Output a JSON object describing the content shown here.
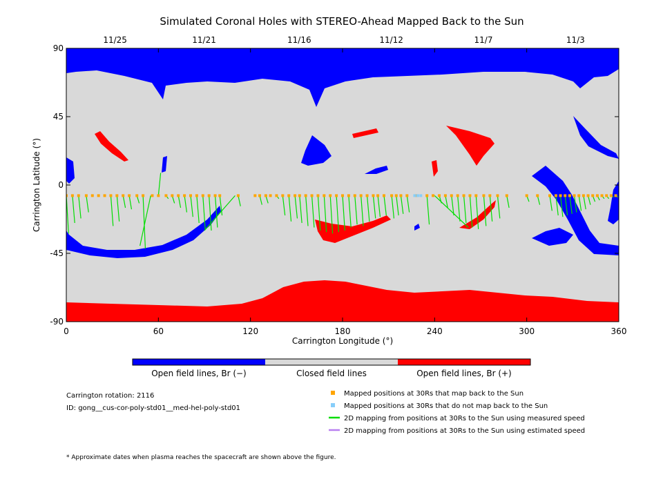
{
  "chart_data": {
    "type": "heatmap",
    "title": "Simulated Coronal Holes with STEREO-Ahead Mapped Back to the Sun",
    "xlabel": "Carrington Longitude (°)",
    "ylabel": "Carrington Latitude (°)",
    "xlim": [
      0,
      360
    ],
    "ylim": [
      -90,
      90
    ],
    "x_ticks": [
      "0",
      "60",
      "120",
      "180",
      "240",
      "300",
      "360"
    ],
    "y_ticks": [
      "90",
      "45",
      "0",
      "-45",
      "-90"
    ],
    "date_ticks": [
      {
        "label": "11/25",
        "lon": 30
      },
      {
        "label": "11/21",
        "lon": 88
      },
      {
        "label": "11/16",
        "lon": 150
      },
      {
        "label": "11/12",
        "lon": 210
      },
      {
        "label": "11/7",
        "lon": 270
      },
      {
        "label": "11/3",
        "lon": 330
      }
    ],
    "colorbar": [
      {
        "label": "Open field lines, Br (−)",
        "color": "#0000ff"
      },
      {
        "label": "Closed field lines",
        "color": "#d9d9d9"
      },
      {
        "label": "Open field lines, Br (+)",
        "color": "#ff0000"
      }
    ],
    "mapped_latitude": -7,
    "mapped_lons": [
      0,
      4,
      8,
      13,
      17,
      21,
      25,
      29,
      33,
      37,
      41,
      46,
      50,
      56,
      60,
      65,
      69,
      73,
      77,
      81,
      85,
      89,
      93,
      97,
      100,
      112,
      123,
      126,
      130,
      133,
      137,
      141,
      145,
      149,
      152,
      156,
      160,
      164,
      168,
      172,
      176,
      180,
      184,
      188,
      192,
      196,
      200,
      203,
      207,
      212,
      215,
      218,
      222,
      228,
      235,
      239,
      243,
      247,
      251,
      255,
      259,
      263,
      267,
      272,
      276,
      281,
      287,
      300,
      307,
      315,
      319,
      322,
      325,
      328,
      331,
      334,
      337,
      340,
      343,
      346,
      349,
      352,
      355,
      358
    ],
    "unmapped_lons": [
      227,
      229,
      231
    ],
    "mappings": [
      [
        0,
        -32
      ],
      [
        4,
        -25
      ],
      [
        8,
        -22
      ],
      [
        13,
        -18
      ],
      [
        29,
        -27
      ],
      [
        33,
        -24
      ],
      [
        37,
        -15
      ],
      [
        41,
        -16
      ],
      [
        46,
        -12
      ],
      [
        50,
        -42
      ],
      [
        60,
        8
      ],
      [
        65,
        -9
      ],
      [
        69,
        -12
      ],
      [
        73,
        -15
      ],
      [
        77,
        -18
      ],
      [
        81,
        -21
      ],
      [
        85,
        -25
      ],
      [
        89,
        -29
      ],
      [
        93,
        -30
      ],
      [
        97,
        -28
      ],
      [
        100,
        -20
      ],
      [
        112,
        -14
      ],
      [
        126,
        -13
      ],
      [
        130,
        -12
      ],
      [
        137,
        -9
      ],
      [
        141,
        -20
      ],
      [
        145,
        -24
      ],
      [
        149,
        -22
      ],
      [
        152,
        -25
      ],
      [
        156,
        -27
      ],
      [
        160,
        -28
      ],
      [
        164,
        -30
      ],
      [
        168,
        -31
      ],
      [
        172,
        -32
      ],
      [
        176,
        -31
      ],
      [
        180,
        -30
      ],
      [
        184,
        -28
      ],
      [
        188,
        -26
      ],
      [
        192,
        -27
      ],
      [
        196,
        -24
      ],
      [
        200,
        -22
      ],
      [
        203,
        -21
      ],
      [
        207,
        -20
      ],
      [
        212,
        -22
      ],
      [
        215,
        -20
      ],
      [
        218,
        -19
      ],
      [
        222,
        -18
      ],
      [
        235,
        -26
      ],
      [
        243,
        -12
      ],
      [
        247,
        -15
      ],
      [
        251,
        -20
      ],
      [
        255,
        -24
      ],
      [
        259,
        -25
      ],
      [
        263,
        -28
      ],
      [
        267,
        -29
      ],
      [
        272,
        -27
      ],
      [
        276,
        -24
      ],
      [
        281,
        -22
      ],
      [
        287,
        -15
      ],
      [
        300,
        -11
      ],
      [
        307,
        -13
      ],
      [
        315,
        -17
      ],
      [
        319,
        -20
      ],
      [
        322,
        -21
      ],
      [
        325,
        -20
      ],
      [
        328,
        -19
      ],
      [
        331,
        -18
      ],
      [
        334,
        -17
      ],
      [
        337,
        -16
      ],
      [
        340,
        -13
      ],
      [
        343,
        -11
      ],
      [
        346,
        -10
      ],
      [
        349,
        -9
      ],
      [
        352,
        -9
      ],
      [
        355,
        -8
      ],
      [
        358,
        -8
      ]
    ]
  },
  "info": {
    "rotation": "Carrington rotation: 2116",
    "id": "ID: gong__cus-cor-poly-std01__med-hel-poly-std01"
  },
  "legend": [
    {
      "label": "Mapped positions at 30Rs that map back to the Sun",
      "color": "#ffa500",
      "kind": "square"
    },
    {
      "label": "Mapped positions at 30Rs that do not map back to the Sun",
      "color": "#87cefa",
      "kind": "square"
    },
    {
      "label": "2D mapping from positions at 30Rs to the Sun using measured speed",
      "color": "#00dd00",
      "kind": "line"
    },
    {
      "label": "2D mapping from positions at 30Rs to the Sun using estimated speed",
      "color": "#b87ff0",
      "kind": "line"
    }
  ],
  "footnote": "* Approximate dates when plasma reaches the spacecraft are shown above the figure."
}
